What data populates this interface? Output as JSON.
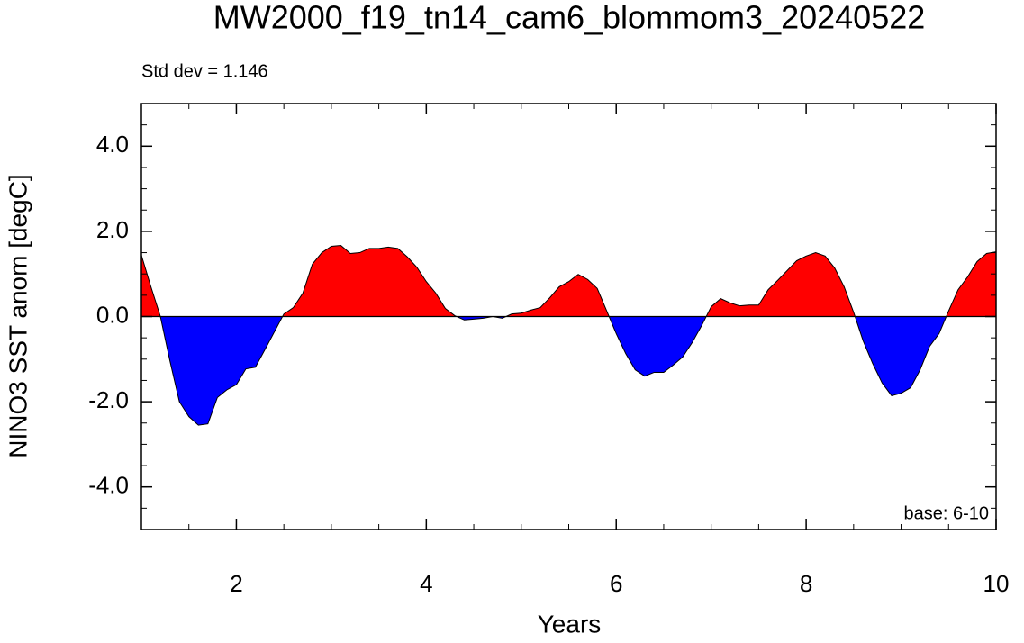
{
  "chart_data": {
    "type": "area",
    "title": "MW2000_f19_tn14_cam6_blommom3_20240522",
    "annotations": [
      "Std dev = 1.146",
      "base: 6-10"
    ],
    "xlabel": "Years",
    "ylabel": "NINO3 SST anom [degC]",
    "x": [
      1.0,
      1.1,
      1.2,
      1.3,
      1.4,
      1.5,
      1.6,
      1.7,
      1.8,
      1.9,
      2.0,
      2.1,
      2.2,
      2.3,
      2.4,
      2.5,
      2.6,
      2.7,
      2.8,
      2.9,
      3.0,
      3.1,
      3.2,
      3.3,
      3.4,
      3.5,
      3.6,
      3.7,
      3.8,
      3.9,
      4.0,
      4.1,
      4.2,
      4.3,
      4.4,
      4.5,
      4.6,
      4.7,
      4.8,
      4.9,
      5.0,
      5.1,
      5.2,
      5.3,
      5.4,
      5.5,
      5.6,
      5.7,
      5.8,
      5.9,
      6.0,
      6.1,
      6.2,
      6.3,
      6.4,
      6.5,
      6.6,
      6.7,
      6.8,
      6.9,
      7.0,
      7.1,
      7.2,
      7.3,
      7.4,
      7.5,
      7.6,
      7.7,
      7.8,
      7.9,
      8.0,
      8.1,
      8.2,
      8.3,
      8.4,
      8.5,
      8.6,
      8.7,
      8.8,
      8.9,
      9.0,
      9.1,
      9.2,
      9.3,
      9.4,
      9.5,
      9.6,
      9.7,
      9.8,
      9.9,
      10.0
    ],
    "values": [
      1.44,
      0.7,
      0.0,
      -1.04,
      -2.0,
      -2.35,
      -2.55,
      -2.52,
      -1.9,
      -1.72,
      -1.6,
      -1.23,
      -1.19,
      -0.78,
      -0.36,
      0.06,
      0.21,
      0.55,
      1.23,
      1.5,
      1.65,
      1.67,
      1.48,
      1.5,
      1.6,
      1.6,
      1.63,
      1.6,
      1.4,
      1.16,
      0.82,
      0.55,
      0.19,
      0.02,
      -0.08,
      -0.06,
      -0.04,
      0.0,
      -0.04,
      0.06,
      0.08,
      0.15,
      0.21,
      0.44,
      0.7,
      0.82,
      0.99,
      0.87,
      0.66,
      0.13,
      -0.4,
      -0.87,
      -1.25,
      -1.4,
      -1.31,
      -1.31,
      -1.14,
      -0.95,
      -0.61,
      -0.21,
      0.23,
      0.42,
      0.32,
      0.25,
      0.27,
      0.27,
      0.63,
      0.85,
      1.08,
      1.31,
      1.42,
      1.5,
      1.42,
      1.14,
      0.7,
      0.1,
      -0.57,
      -1.1,
      -1.56,
      -1.86,
      -1.8,
      -1.67,
      -1.25,
      -0.7,
      -0.4,
      0.13,
      0.63,
      0.93,
      1.29,
      1.48,
      1.52
    ],
    "above_color": "#ff0000",
    "below_color": "#0000ff",
    "xlim": [
      1,
      10
    ],
    "xticks": [
      2,
      4,
      6,
      8,
      10
    ],
    "ylim": [
      -5,
      5
    ],
    "yticks": [
      {
        "value": -4,
        "label": "-4.0"
      },
      {
        "value": -2,
        "label": "-2.0"
      },
      {
        "value": 0,
        "label": "0.0"
      },
      {
        "value": 2,
        "label": "2.0"
      },
      {
        "value": 4,
        "label": "4.0"
      }
    ]
  }
}
